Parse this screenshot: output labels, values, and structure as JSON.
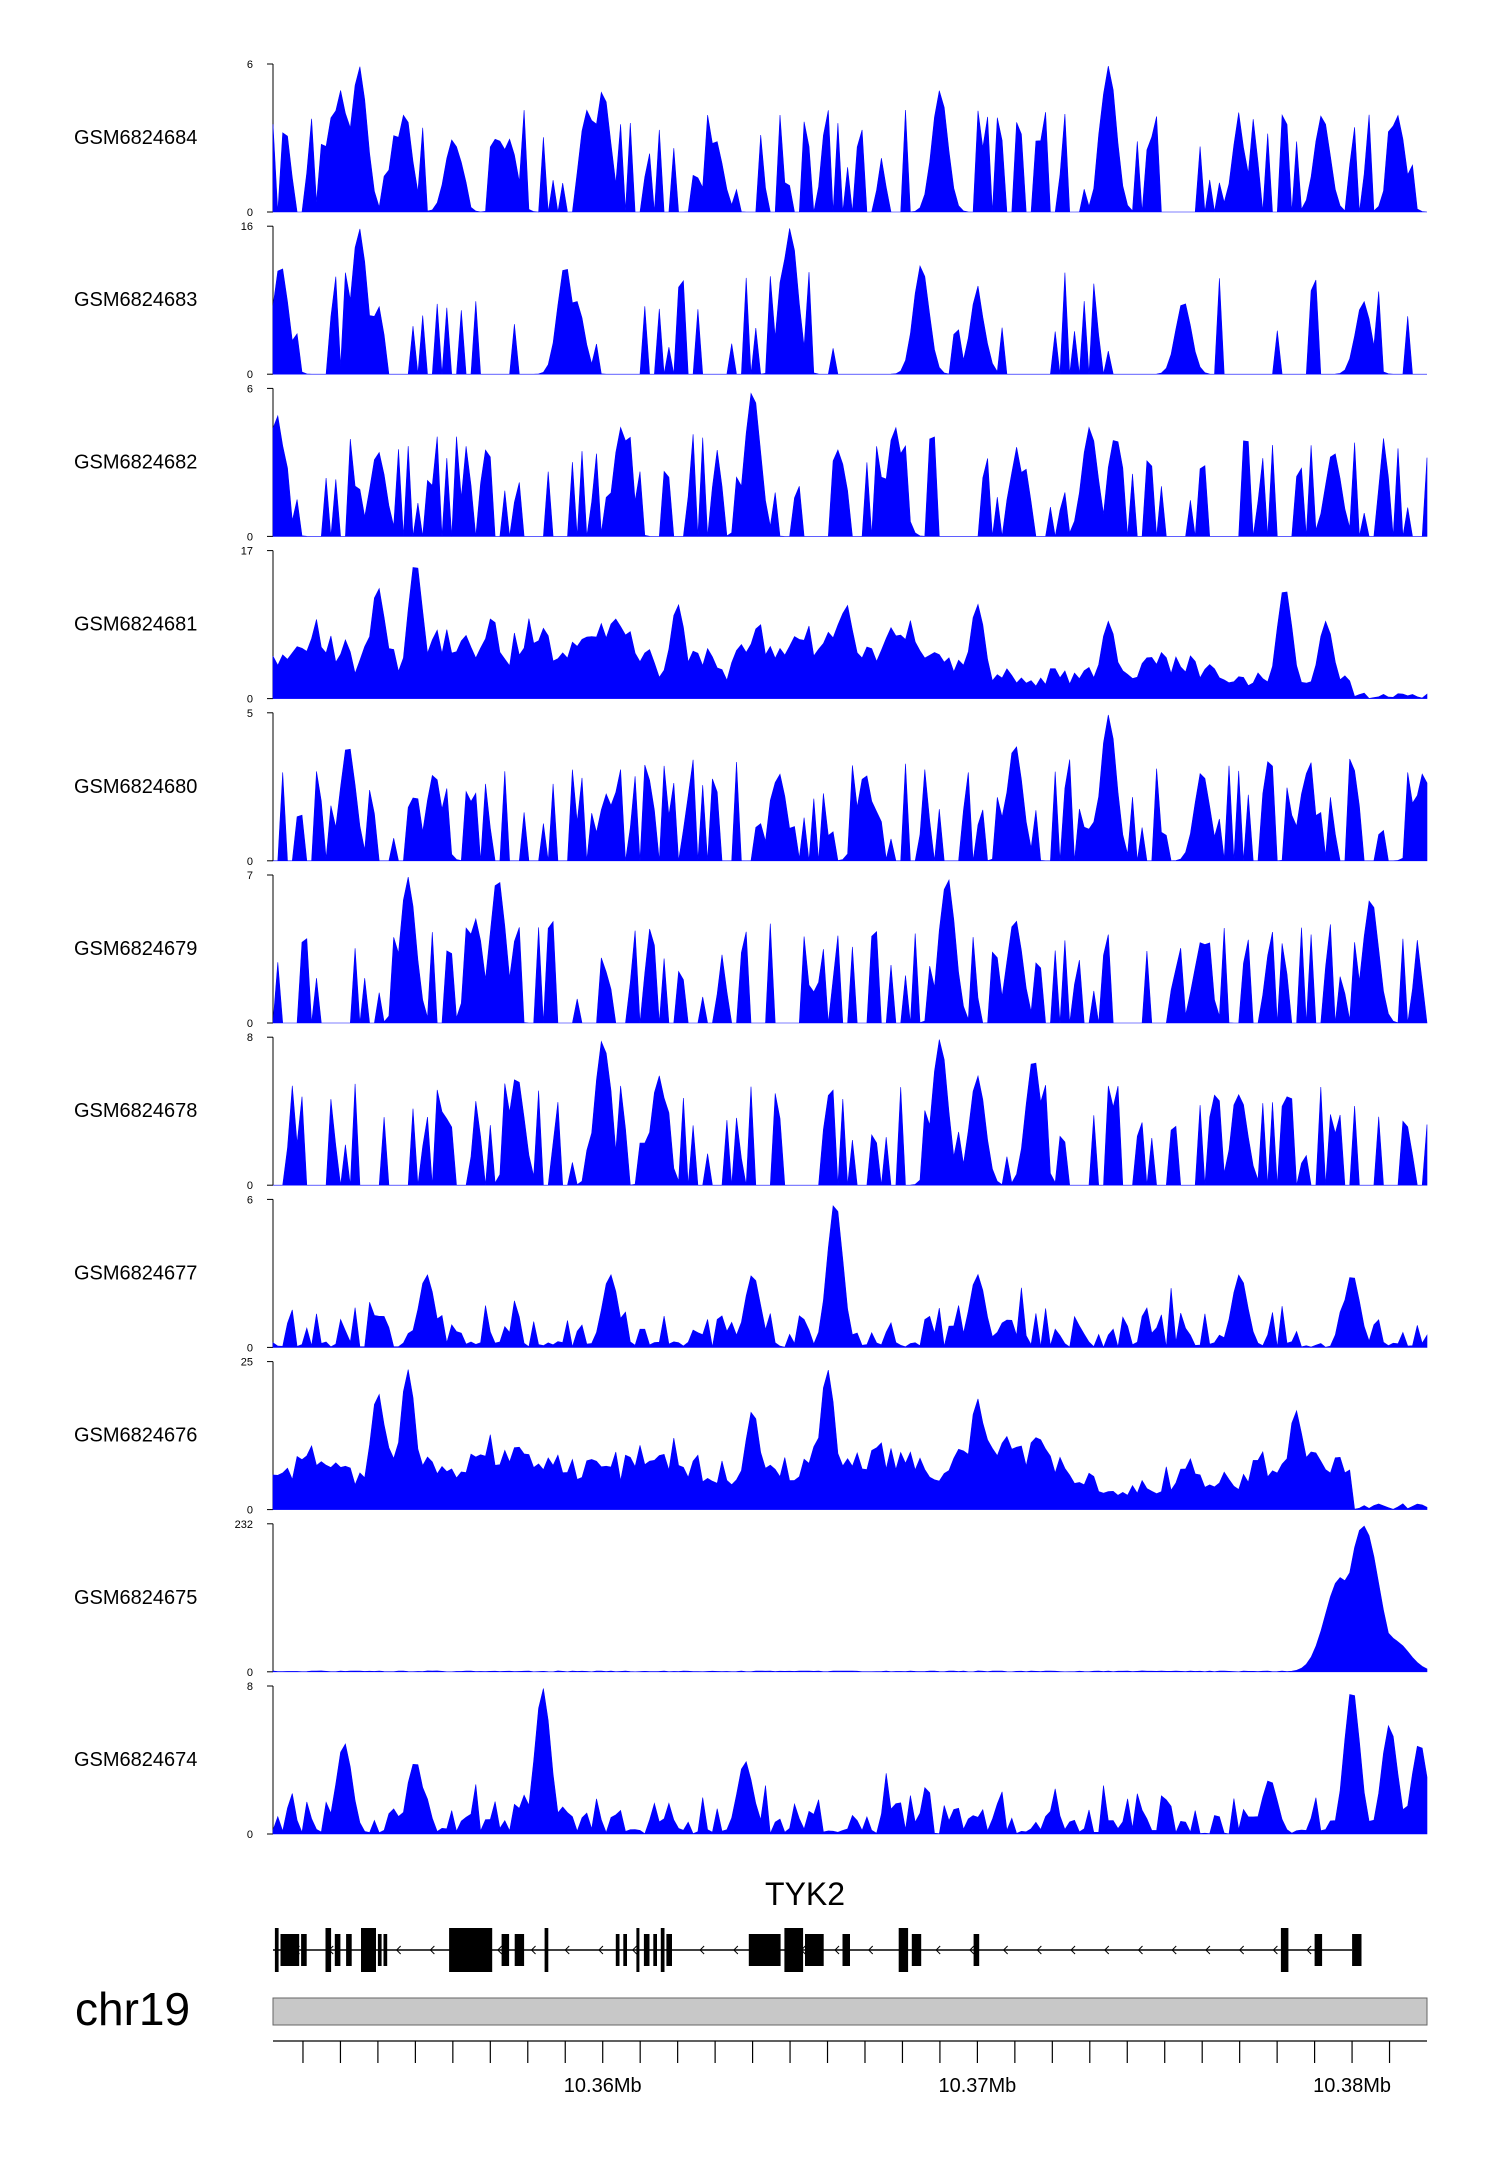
{
  "chart_data": {
    "type": "area",
    "title": "",
    "x_unit": "Mb",
    "xlim": [
      10.3512,
      10.382
    ],
    "colors": {
      "signal": "#0000ff",
      "gene": "#000000",
      "ideogram": "#c8c8c8"
    },
    "tracks": [
      {
        "name": "GSM6824684",
        "ymax": 6,
        "ymin": 0,
        "pattern": "sparse",
        "peaks": [
          [
            10.3535,
            6
          ],
          [
            10.3528,
            4
          ],
          [
            10.353,
            5
          ],
          [
            10.3547,
            4
          ],
          [
            10.356,
            3
          ],
          [
            10.3575,
            3
          ],
          [
            10.36,
            5
          ],
          [
            10.363,
            3
          ],
          [
            10.369,
            5
          ],
          [
            10.3735,
            6
          ],
          [
            10.377,
            3
          ],
          [
            10.3792,
            4
          ],
          [
            10.3812,
            4
          ]
        ]
      },
      {
        "name": "GSM6824683",
        "ymax": 16,
        "ymin": 0,
        "pattern": "very_sparse",
        "peaks": [
          [
            10.3514,
            12
          ],
          [
            10.3535,
            16
          ],
          [
            10.3593,
            8
          ],
          [
            10.359,
            12
          ],
          [
            10.365,
            16
          ],
          [
            10.3685,
            12
          ],
          [
            10.37,
            8
          ],
          [
            10.3755,
            8
          ],
          [
            10.3803,
            8
          ]
        ]
      },
      {
        "name": "GSM6824682",
        "ymax": 6,
        "ymin": 0,
        "pattern": "sparse",
        "peaks": [
          [
            10.3513,
            5
          ],
          [
            10.354,
            3.5
          ],
          [
            10.3605,
            4.5
          ],
          [
            10.364,
            6
          ],
          [
            10.3678,
            4.5
          ],
          [
            10.373,
            4.5
          ],
          [
            10.3795,
            3.5
          ]
        ]
      },
      {
        "name": "GSM6824681",
        "ymax": 17,
        "ymin": 0,
        "pattern": "dense",
        "peaks": [
          [
            10.355,
            16
          ],
          [
            10.354,
            13
          ],
          [
            10.362,
            11
          ],
          [
            10.3665,
            11
          ],
          [
            10.37,
            11
          ],
          [
            10.3735,
            9
          ],
          [
            10.3782,
            13
          ],
          [
            10.3793,
            9
          ],
          [
            10.382,
            1
          ]
        ]
      },
      {
        "name": "GSM6824680",
        "ymax": 5,
        "ymin": 0,
        "pattern": "sparse",
        "peaks": [
          [
            10.3532,
            4
          ],
          [
            10.3555,
            3
          ],
          [
            10.3647,
            3
          ],
          [
            10.367,
            3
          ],
          [
            10.371,
            4
          ],
          [
            10.3735,
            5
          ],
          [
            10.376,
            3
          ],
          [
            10.3788,
            3
          ],
          [
            10.3819,
            3
          ]
        ]
      },
      {
        "name": "GSM6824679",
        "ymax": 7,
        "ymin": 0,
        "pattern": "sparse",
        "peaks": [
          [
            10.3548,
            7
          ],
          [
            10.3572,
            7
          ],
          [
            10.3566,
            5
          ],
          [
            10.3692,
            7
          ],
          [
            10.371,
            5
          ],
          [
            10.3805,
            6
          ],
          [
            10.376,
            4
          ]
        ]
      },
      {
        "name": "GSM6824678",
        "ymax": 8,
        "ymin": 0,
        "pattern": "sparse",
        "peaks": [
          [
            10.36,
            8
          ],
          [
            10.3577,
            6
          ],
          [
            10.3615,
            6
          ],
          [
            10.369,
            8
          ],
          [
            10.37,
            6
          ],
          [
            10.3715,
            7
          ],
          [
            10.377,
            5
          ]
        ]
      },
      {
        "name": "GSM6824677",
        "ymax": 6,
        "ymin": 0,
        "pattern": "medium",
        "peaks": [
          [
            10.3662,
            6
          ],
          [
            10.364,
            3
          ],
          [
            10.3602,
            3
          ],
          [
            10.3553,
            3
          ],
          [
            10.37,
            3
          ],
          [
            10.377,
            3
          ],
          [
            10.38,
            3
          ]
        ]
      },
      {
        "name": "GSM6824676",
        "ymax": 25,
        "ymin": 0,
        "pattern": "dense",
        "peaks": [
          [
            10.3548,
            24
          ],
          [
            10.354,
            20
          ],
          [
            10.366,
            24
          ],
          [
            10.364,
            17
          ],
          [
            10.37,
            19
          ],
          [
            10.3785,
            17
          ],
          [
            10.382,
            1
          ]
        ]
      },
      {
        "name": "GSM6824675",
        "ymax": 232,
        "ymin": 0,
        "pattern": "single",
        "peaks": [
          [
            10.3803,
            232
          ],
          [
            10.3797,
            150
          ],
          [
            10.3809,
            60
          ],
          [
            10.3811,
            50
          ]
        ]
      },
      {
        "name": "GSM6824674",
        "ymax": 8,
        "ymin": 0,
        "pattern": "medium",
        "peaks": [
          [
            10.3584,
            8
          ],
          [
            10.3531,
            5
          ],
          [
            10.355,
            4
          ],
          [
            10.3638,
            4
          ],
          [
            10.3778,
            3
          ],
          [
            10.38,
            8
          ],
          [
            10.381,
            6
          ],
          [
            10.3818,
            5
          ]
        ]
      }
    ],
    "gene": {
      "name": "TYK2",
      "strand": "-",
      "start": 10.3512,
      "end": 10.38,
      "exons": [
        [
          10.35125,
          10.35135
        ],
        [
          10.3514,
          10.3519
        ],
        [
          10.35195,
          10.3521
        ],
        [
          10.3526,
          10.35275
        ],
        [
          10.35285,
          10.353
        ],
        [
          10.35315,
          10.3533
        ],
        [
          10.35355,
          10.35395
        ],
        [
          10.354,
          10.3541
        ],
        [
          10.35415,
          10.35425
        ],
        [
          10.3559,
          10.35705
        ],
        [
          10.3573,
          10.3575
        ],
        [
          10.35765,
          10.3579
        ],
        [
          10.35845,
          10.35855
        ],
        [
          10.36035,
          10.36045
        ],
        [
          10.36055,
          10.36065
        ],
        [
          10.3609,
          10.36095
        ],
        [
          10.3611,
          10.36125
        ],
        [
          10.36135,
          10.36145
        ],
        [
          10.36155,
          10.36165
        ],
        [
          10.3617,
          10.36185
        ],
        [
          10.3639,
          10.36475
        ],
        [
          10.36485,
          10.36535
        ],
        [
          10.3654,
          10.3659
        ],
        [
          10.3664,
          10.3666
        ],
        [
          10.3679,
          10.36815
        ],
        [
          10.36825,
          10.3685
        ],
        [
          10.3699,
          10.37005
        ],
        [
          10.3781,
          10.3783
        ],
        [
          10.379,
          10.3792
        ],
        [
          10.38,
          10.38025
        ]
      ]
    },
    "chromosome": "chr19",
    "xticks": [
      10.352,
      10.353,
      10.354,
      10.355,
      10.356,
      10.357,
      10.358,
      10.359,
      10.36,
      10.361,
      10.362,
      10.363,
      10.364,
      10.365,
      10.366,
      10.367,
      10.368,
      10.369,
      10.37,
      10.371,
      10.372,
      10.373,
      10.374,
      10.375,
      10.376,
      10.377,
      10.378,
      10.379,
      10.38,
      10.381
    ],
    "xtick_labels": [
      {
        "value": 10.36,
        "text": "10.36Mb"
      },
      {
        "value": 10.37,
        "text": "10.37Mb"
      },
      {
        "value": 10.38,
        "text": "10.38Mb"
      }
    ]
  }
}
